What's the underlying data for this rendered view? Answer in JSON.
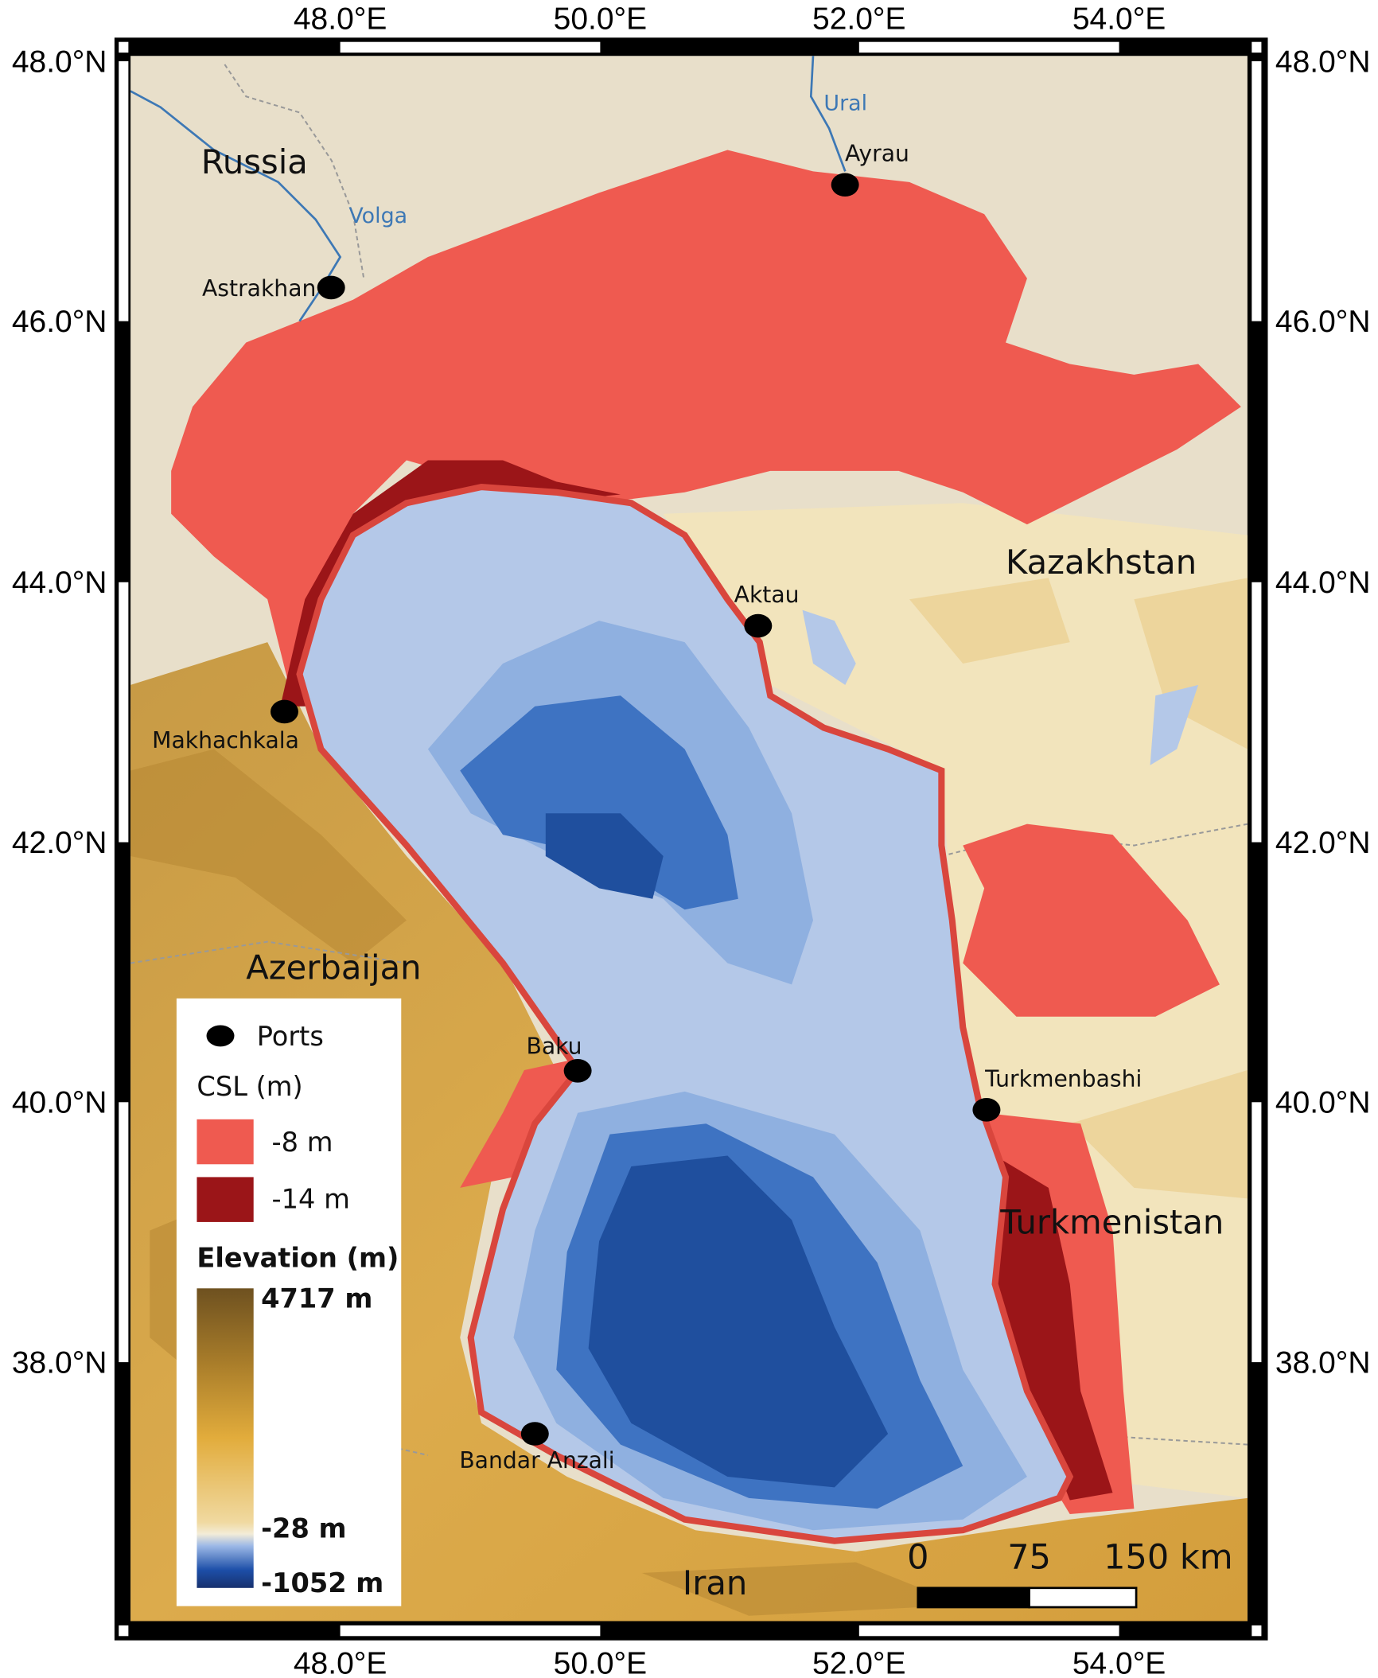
{
  "axes": {
    "top_ticks": [
      "48.0°E",
      "50.0°E",
      "52.0°E",
      "54.0°E"
    ],
    "bottom_ticks": [
      "48.0°E",
      "50.0°E",
      "52.0°E",
      "54.0°E"
    ],
    "left_ticks": [
      "48.0°N",
      "46.0°N",
      "44.0°N",
      "42.0°N",
      "40.0°N",
      "38.0°N"
    ],
    "right_ticks": [
      "48.0°N",
      "46.0°N",
      "44.0°N",
      "42.0°N",
      "40.0°N",
      "38.0°N"
    ]
  },
  "countries": {
    "russia": "Russia",
    "kazakhstan": "Kazakhstan",
    "azerbaijan": "Azerbaijan",
    "turkmenistan": "Turkmenistan",
    "iran": "Iran"
  },
  "rivers": {
    "volga": "Volga",
    "ural": "Ural"
  },
  "ports": [
    {
      "name": "Ayrau",
      "lon": 51.89,
      "lat": 47.05
    },
    {
      "name": "Astrakhan",
      "lon": 47.93,
      "lat": 46.26
    },
    {
      "name": "Aktau",
      "lon": 51.22,
      "lat": 43.66
    },
    {
      "name": "Makhachkala",
      "lon": 47.57,
      "lat": 43.0
    },
    {
      "name": "Baku",
      "lon": 49.83,
      "lat": 40.24
    },
    {
      "name": "Turkmenbashi",
      "lon": 52.98,
      "lat": 39.94
    },
    {
      "name": "Bandar Anzali",
      "lon": 49.5,
      "lat": 37.45
    }
  ],
  "legend": {
    "ports_label": "Ports",
    "csl_title": "CSL (m)",
    "csl_items": [
      {
        "label": "-8 m",
        "color": "#ef5a50"
      },
      {
        "label": "-14 m",
        "color": "#9b1518"
      }
    ],
    "elevation_title": "Elevation (m)",
    "elevation_max": "4717 m",
    "elevation_sea": "-28 m",
    "elevation_min": "-1052 m"
  },
  "scale_bar": {
    "labels": [
      "0",
      "75",
      "150 km"
    ]
  },
  "colors": {
    "land": "#e8dfca",
    "mountain": "#d6a445",
    "shallow_sea": "#b4c8e8",
    "deep_sea": "#1f4f9e",
    "csl_8": "#ef5a50",
    "csl_14": "#9b1518",
    "river": "#3d78b5"
  }
}
